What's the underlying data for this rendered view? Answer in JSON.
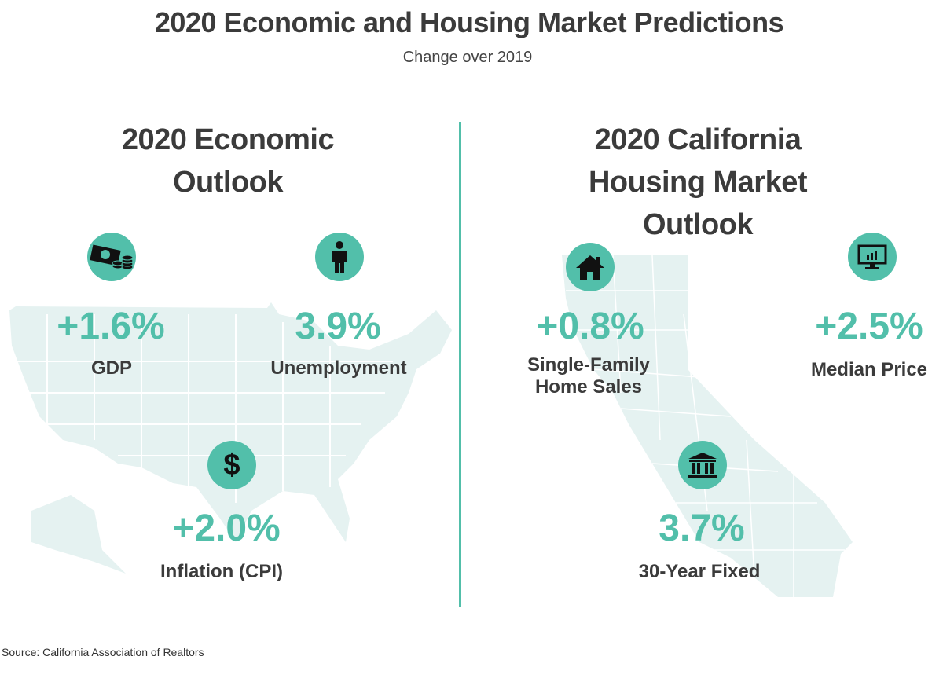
{
  "title": "2020 Economic and Housing Market Predictions",
  "subtitle": "Change over 2019",
  "colors": {
    "accent": "#52bfaa",
    "map": "#e5f2f1",
    "text": "#3b3b3b"
  },
  "economic": {
    "heading_lines": [
      "2020 Economic",
      "Outlook"
    ],
    "items": [
      {
        "icon": "money-icon",
        "value": "+1.6%",
        "label": "GDP"
      },
      {
        "icon": "person-icon",
        "value": "3.9%",
        "label": "Unemployment"
      },
      {
        "icon": "dollar-icon",
        "value": "+2.0%",
        "label": "Inflation (CPI)"
      }
    ]
  },
  "housing": {
    "heading_lines": [
      "2020 California",
      "Housing Market",
      "Outlook"
    ],
    "items": [
      {
        "icon": "house-icon",
        "value": "+0.8%",
        "label_lines": [
          "Single-Family",
          "Home Sales"
        ]
      },
      {
        "icon": "monitor-chart-icon",
        "value": "+2.5%",
        "label": "Median Price"
      },
      {
        "icon": "bank-icon",
        "value": "3.7%",
        "label": "30-Year Fixed"
      }
    ]
  },
  "source": "Source:  California Association of Realtors"
}
